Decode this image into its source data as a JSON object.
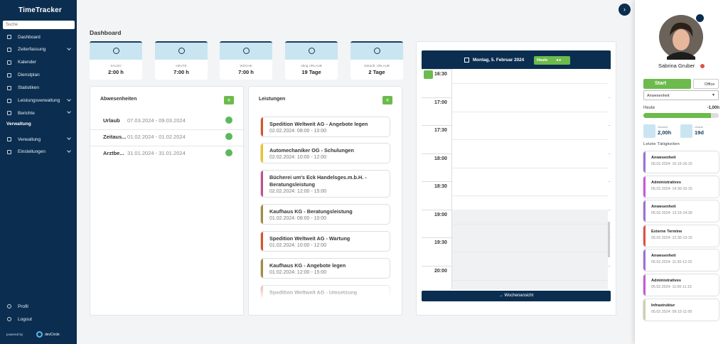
{
  "sidebar": {
    "logo": "TimeTracker",
    "search_placeholder": "Suche",
    "nav": [
      {
        "label": "Dashboard",
        "expandable": false
      },
      {
        "label": "Zeiterfassung",
        "expandable": true
      },
      {
        "label": "Kalender",
        "expandable": false
      },
      {
        "label": "Dienstplan",
        "expandable": false
      },
      {
        "label": "Statistiken",
        "expandable": false
      },
      {
        "label": "Leistungsverwaltung",
        "expandable": true
      },
      {
        "label": "Berichte",
        "expandable": true
      }
    ],
    "section": "Verwaltung",
    "nav2": [
      {
        "label": "Verwaltung",
        "expandable": true
      },
      {
        "label": "Einstellungen",
        "expandable": true
      }
    ],
    "bottom": [
      "Profil",
      "Logout"
    ],
    "powered_by": "powered by",
    "brand": "devCircle"
  },
  "main": {
    "title": "Dashboard",
    "stats": [
      {
        "label": "SALDO",
        "value": "2:00 h"
      },
      {
        "label": "HEUTE",
        "value": "7:00 h"
      },
      {
        "label": "WOCHE",
        "value": "7:00 h"
      },
      {
        "label": "übrig URLAUB",
        "value": "19 Tage"
      },
      {
        "label": "Zukünft. URLAUB",
        "value": "2 Tage"
      }
    ]
  },
  "absences": {
    "title": "Abwesenheiten",
    "add": "+",
    "rows": [
      {
        "type": "Urlaub",
        "range": "07.03.2024 - 09.03.2024"
      },
      {
        "type": "Zeitaus...",
        "range": "01.02.2024 - 01.02.2024"
      },
      {
        "type": "Arztbe...",
        "range": "31.01.2024 - 31.01.2024"
      }
    ]
  },
  "services": {
    "title": "Leistungen",
    "add": "+",
    "items": [
      {
        "title": "Spedition Weltweit AG - Angebote legen",
        "time": "02.02.2024: 08:00 - 10:00",
        "color": "#d4542c"
      },
      {
        "title": "Automechaniker OG - Schulungen",
        "time": "02.02.2024: 10:00 - 12:00",
        "color": "#f2c21b"
      },
      {
        "title": "Bücherei um's Eck Handelsges.m.b.H. - Beratungsleistung",
        "time": "02.02.2024: 12:00 - 15:00",
        "color": "#c0508c"
      },
      {
        "title": "Kaufhaus KG - Beratungsleistung",
        "time": "01.02.2024: 08:00 - 10:00",
        "color": "#a38b3e"
      },
      {
        "title": "Spedition Weltweit AG - Wartung",
        "time": "01.02.2024: 10:00 - 12:00",
        "color": "#d4542c"
      },
      {
        "title": "Kaufhaus KG - Angebote legen",
        "time": "01.02.2024: 12:00 - 15:00",
        "color": "#a38b3e"
      },
      {
        "title": "Spedition Weltweit AG - Umsetzung",
        "time": "",
        "color": "#e8a08a"
      }
    ]
  },
  "calendar": {
    "date": "Montag, 5. Februar 2024",
    "today": "Heute",
    "times": [
      "16:30",
      "17:00",
      "17:30",
      "18:00",
      "18:30",
      "19:00",
      "19:30",
      "20:00"
    ],
    "week_view": "Wochenansicht"
  },
  "profile": {
    "name": "Sabrina Gruber",
    "start": "Start",
    "office": "Office",
    "select": "Anwesenheit",
    "today_label": "Heute",
    "today_value": "-1,00h",
    "totals": [
      {
        "label": "Gesamt",
        "value": "2,00h"
      },
      {
        "label": "Urlaub",
        "value": "19d"
      }
    ],
    "recent_title": "Letzte Tätigkeiten",
    "recent": [
      {
        "title": "Anwesenheit",
        "time": "05.02.2024: 15:15-16:15",
        "color": "#9b72d8"
      },
      {
        "title": "Administratives",
        "time": "05.02.2024: 14:30-15:15",
        "color": "#c95ad8"
      },
      {
        "title": "Anwesenheit",
        "time": "05.02.2024: 13:15-14:30",
        "color": "#9b72d8"
      },
      {
        "title": "Externe Termine",
        "time": "05.02.2024: 12:30-13:15",
        "color": "#e0504a"
      },
      {
        "title": "Anwesenheit",
        "time": "05.02.2024: 11:30-12:15",
        "color": "#9b72d8"
      },
      {
        "title": "Administratives",
        "time": "05.02.2024: 11:00-11:15",
        "color": "#c95ad8"
      },
      {
        "title": "Infrastruktur",
        "time": "05.02.2024: 09:15-11:00",
        "color": "#cfcfae"
      }
    ]
  }
}
